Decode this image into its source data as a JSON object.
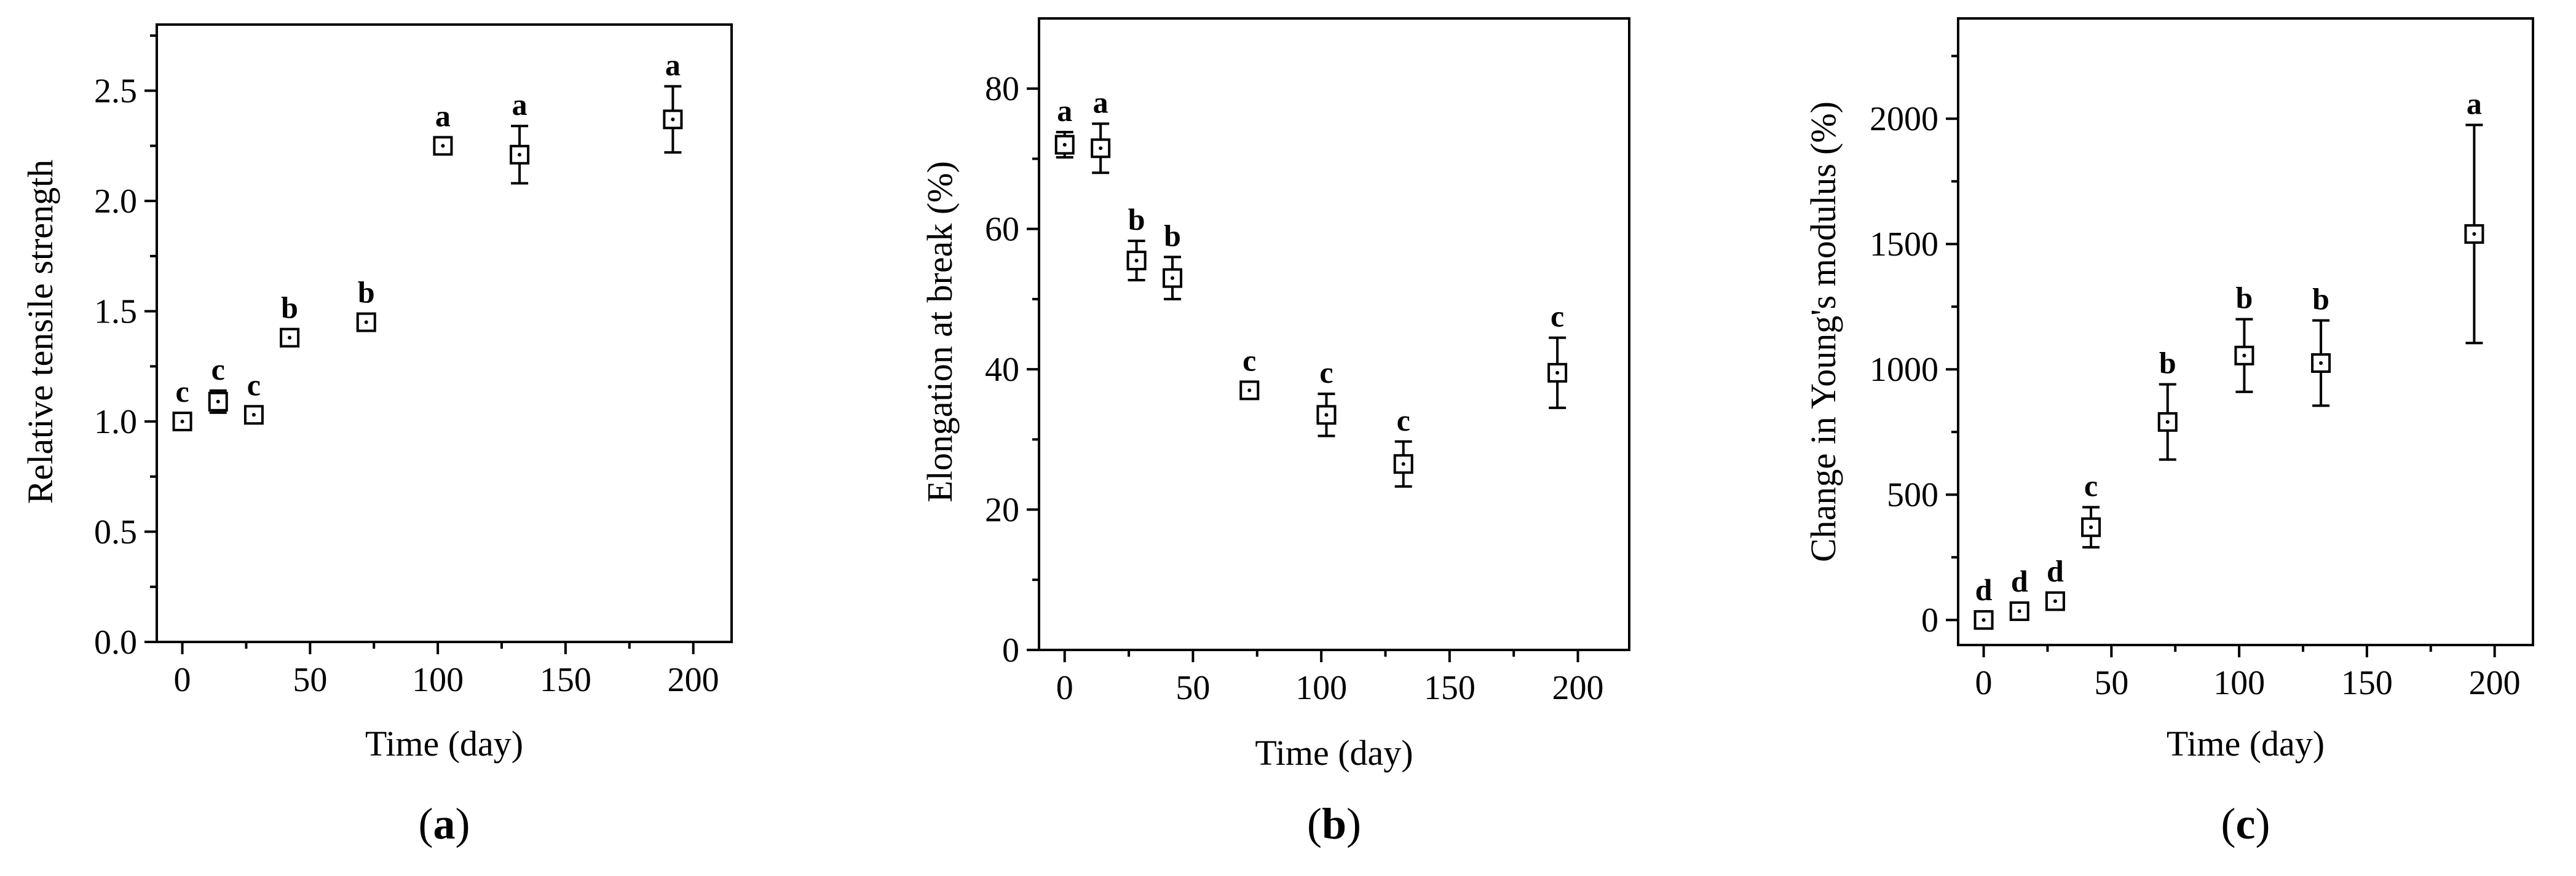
{
  "chart_data": [
    {
      "type": "scatter",
      "panel_label": "a",
      "xlabel": "Time (day)",
      "ylabel": "Relative tensile strength",
      "xlim": [
        -10,
        215
      ],
      "ylim": [
        0,
        2.8
      ],
      "xticks": [
        0,
        50,
        100,
        150,
        200
      ],
      "xtick_labels": [
        "0",
        "50",
        "100",
        "150",
        "200"
      ],
      "yticks": [
        0,
        0.5,
        1.0,
        1.5,
        2.0,
        2.5
      ],
      "ytick_labels": [
        "0.0",
        "0.5",
        "1.0",
        "1.5",
        "2.0",
        "2.5"
      ],
      "grid": false,
      "points": [
        {
          "x": 0,
          "y": 1.0,
          "err": 0.02,
          "label": "c"
        },
        {
          "x": 14,
          "y": 1.09,
          "err": 0.05,
          "label": "c"
        },
        {
          "x": 28,
          "y": 1.03,
          "err": 0.03,
          "label": "c"
        },
        {
          "x": 42,
          "y": 1.38,
          "err": 0.03,
          "label": "b"
        },
        {
          "x": 72,
          "y": 1.45,
          "err": 0.02,
          "label": "b"
        },
        {
          "x": 102,
          "y": 2.25,
          "err": 0.02,
          "label": "a"
        },
        {
          "x": 132,
          "y": 2.21,
          "err": 0.13,
          "label": "a"
        },
        {
          "x": 192,
          "y": 2.37,
          "err": 0.15,
          "label": "a"
        }
      ]
    },
    {
      "type": "scatter",
      "panel_label": "b",
      "xlabel": "Time (day)",
      "ylabel": "Elongation at break (%)",
      "xlim": [
        -10,
        220
      ],
      "ylim": [
        0,
        90
      ],
      "xticks": [
        0,
        50,
        100,
        150,
        200
      ],
      "xtick_labels": [
        "0",
        "50",
        "100",
        "150",
        "200"
      ],
      "yticks": [
        0,
        20,
        40,
        60,
        80
      ],
      "ytick_labels": [
        "0",
        "20",
        "40",
        "60",
        "80"
      ],
      "grid": false,
      "points": [
        {
          "x": 0,
          "y": 72.0,
          "err": 1.8,
          "label": "a"
        },
        {
          "x": 14,
          "y": 71.5,
          "err": 3.5,
          "label": "a"
        },
        {
          "x": 28,
          "y": 55.5,
          "err": 2.8,
          "label": "b"
        },
        {
          "x": 42,
          "y": 53.0,
          "err": 3.0,
          "label": "b"
        },
        {
          "x": 72,
          "y": 37.0,
          "err": 1.2,
          "label": "c"
        },
        {
          "x": 102,
          "y": 33.5,
          "err": 3.0,
          "label": "c"
        },
        {
          "x": 132,
          "y": 26.5,
          "err": 3.2,
          "label": "c"
        },
        {
          "x": 192,
          "y": 39.5,
          "err": 5.0,
          "label": "c"
        }
      ]
    },
    {
      "type": "scatter",
      "panel_label": "c",
      "xlabel": "Time (day)",
      "ylabel": "Change in Young's modulus (%)",
      "xlim": [
        -10,
        215
      ],
      "ylim": [
        -100,
        2400
      ],
      "xticks": [
        0,
        50,
        100,
        150,
        200
      ],
      "xtick_labels": [
        "0",
        "50",
        "100",
        "150",
        "200"
      ],
      "yticks": [
        0,
        500,
        1000,
        1500,
        2000
      ],
      "ytick_labels": [
        "0",
        "500",
        "1000",
        "1500",
        "2000"
      ],
      "grid": false,
      "points": [
        {
          "x": 0,
          "y": 0,
          "err": 15,
          "label": "d"
        },
        {
          "x": 14,
          "y": 35,
          "err": 25,
          "label": "d"
        },
        {
          "x": 28,
          "y": 75,
          "err": 30,
          "label": "d"
        },
        {
          "x": 42,
          "y": 370,
          "err": 80,
          "label": "c"
        },
        {
          "x": 72,
          "y": 790,
          "err": 150,
          "label": "b"
        },
        {
          "x": 102,
          "y": 1055,
          "err": 145,
          "label": "b"
        },
        {
          "x": 132,
          "y": 1025,
          "err": 170,
          "label": "b"
        },
        {
          "x": 192,
          "y": 1540,
          "err": 435,
          "label": "a"
        }
      ]
    }
  ]
}
